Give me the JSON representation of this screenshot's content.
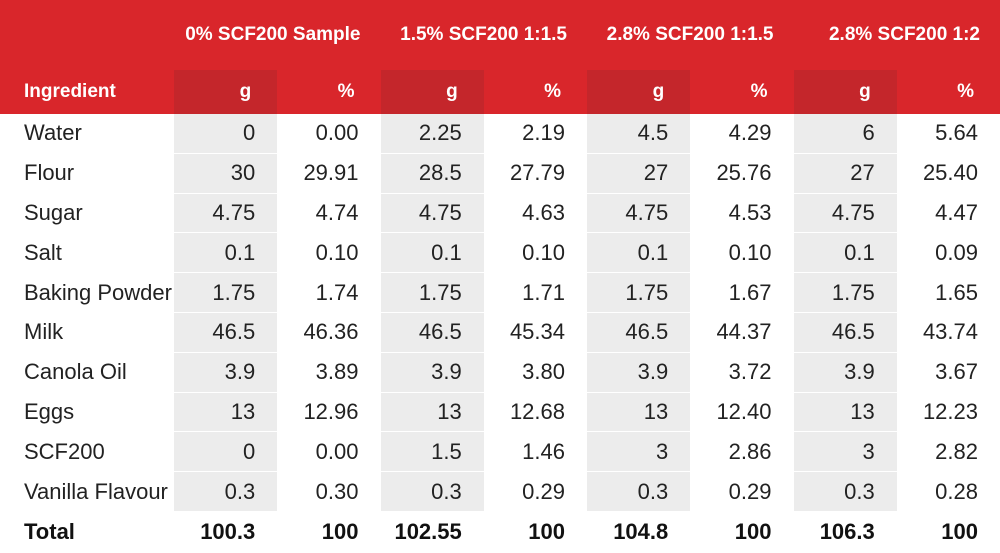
{
  "table": {
    "groups": [
      "0% SCF200 Sample",
      "1.5% SCF200 1:1.5",
      "2.8% SCF200 1:1.5",
      "2.8% SCF200 1:2"
    ],
    "ingredient_header": "Ingredient",
    "unit_headers": [
      "g",
      "%",
      "g",
      "%",
      "g",
      "%",
      "g",
      "%"
    ],
    "rows": [
      {
        "name": "Water",
        "values": [
          "0",
          "0.00",
          "2.25",
          "2.19",
          "4.5",
          "4.29",
          "6",
          "5.64"
        ]
      },
      {
        "name": "Flour",
        "values": [
          "30",
          "29.91",
          "28.5",
          "27.79",
          "27",
          "25.76",
          "27",
          "25.40"
        ]
      },
      {
        "name": "Sugar",
        "values": [
          "4.75",
          "4.74",
          "4.75",
          "4.63",
          "4.75",
          "4.53",
          "4.75",
          "4.47"
        ]
      },
      {
        "name": "Salt",
        "values": [
          "0.1",
          "0.10",
          "0.1",
          "0.10",
          "0.1",
          "0.10",
          "0.1",
          "0.09"
        ]
      },
      {
        "name": "Baking Powder",
        "values": [
          "1.75",
          "1.74",
          "1.75",
          "1.71",
          "1.75",
          "1.67",
          "1.75",
          "1.65"
        ]
      },
      {
        "name": "Milk",
        "values": [
          "46.5",
          "46.36",
          "46.5",
          "45.34",
          "46.5",
          "44.37",
          "46.5",
          "43.74"
        ]
      },
      {
        "name": "Canola Oil",
        "values": [
          "3.9",
          "3.89",
          "3.9",
          "3.80",
          "3.9",
          "3.72",
          "3.9",
          "3.67"
        ]
      },
      {
        "name": "Eggs",
        "values": [
          "13",
          "12.96",
          "13",
          "12.68",
          "13",
          "12.40",
          "13",
          "12.23"
        ]
      },
      {
        "name": "SCF200",
        "values": [
          "0",
          "0.00",
          "1.5",
          "1.46",
          "3",
          "2.86",
          "3",
          "2.82"
        ]
      },
      {
        "name": "Vanilla Flavour",
        "values": [
          "0.3",
          "0.30",
          "0.3",
          "0.29",
          "0.3",
          "0.29",
          "0.3",
          "0.28"
        ]
      }
    ],
    "total": {
      "name": "Total",
      "values": [
        "100.3",
        "100",
        "102.55",
        "100",
        "104.8",
        "100",
        "106.3",
        "100"
      ]
    }
  }
}
